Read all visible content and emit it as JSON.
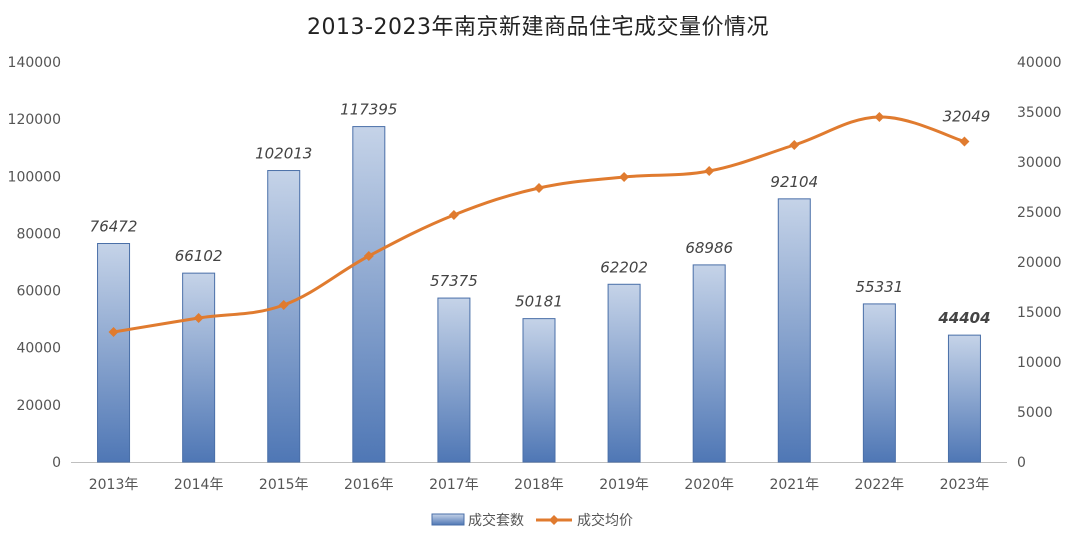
{
  "chart_data": {
    "type": "bar",
    "title": "2013-2023年南京新建商品住宅成交量价情况",
    "categories": [
      "2013年",
      "2014年",
      "2015年",
      "2016年",
      "2017年",
      "2018年",
      "2019年",
      "2020年",
      "2021年",
      "2022年",
      "2023年"
    ],
    "series": [
      {
        "name": "成交套数",
        "type": "bar",
        "axis": "left",
        "values": [
          76472,
          66102,
          102013,
          117395,
          57375,
          50181,
          62202,
          68986,
          92104,
          55331,
          44404
        ],
        "data_labels": [
          "76472",
          "66102",
          "102013",
          "117395",
          "57375",
          "50181",
          "62202",
          "68986",
          "92104",
          "55331",
          "44404"
        ],
        "color_top": "#c5d3e8",
        "color_bottom": "#4f77b5",
        "border": "#4a6fa8"
      },
      {
        "name": "成交均价",
        "type": "line",
        "axis": "right",
        "values": [
          13000,
          14400,
          15700,
          20600,
          24700,
          27400,
          28500,
          29100,
          31700,
          34500,
          32049
        ],
        "data_labels": [
          "",
          "",
          "",
          "",
          "",
          "",
          "",
          "",
          "",
          "",
          "32049"
        ],
        "color": "#e07b2f"
      }
    ],
    "ylim_left": [
      0,
      140000
    ],
    "yticks_left": [
      "140000",
      "120000",
      "100000",
      "80000",
      "60000",
      "40000",
      "20000",
      "0"
    ],
    "ylim_right": [
      0,
      40000
    ],
    "yticks_right": [
      "40000",
      "35000",
      "30000",
      "25000",
      "20000",
      "15000",
      "10000",
      "5000",
      "0"
    ],
    "grid": false,
    "legend_position": "bottom"
  }
}
